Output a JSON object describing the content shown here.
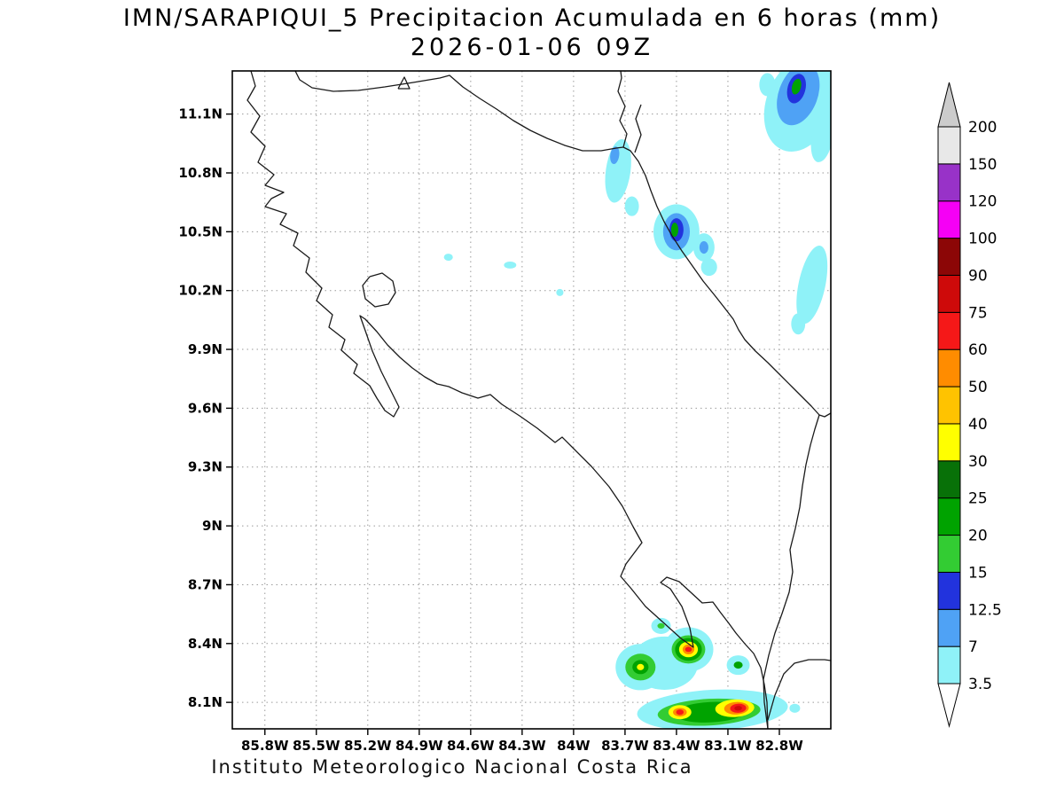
{
  "title": {
    "line1": "IMN/SARAPIQUI_5 Precipitacion Acumulada en 6 horas (mm)",
    "line2": "2026-01-06 09Z"
  },
  "footer": "Instituto Meteorologico Nacional Costa Rica",
  "axes": {
    "y_tick_labels": [
      "11.1N",
      "10.8N",
      "10.5N",
      "10.2N",
      "9.9N",
      "9.6N",
      "9.3N",
      "9N",
      "8.7N",
      "8.4N",
      "8.1N"
    ],
    "x_tick_labels": [
      "85.8W",
      "85.5W",
      "85.2W",
      "84.9W",
      "84.6W",
      "84.3W",
      "84W",
      "83.7W",
      "83.4W",
      "83.1W",
      "82.8W"
    ]
  },
  "colorbar": {
    "labels_bottom_to_top": [
      "3.5",
      "7",
      "12.5",
      "15",
      "20",
      "25",
      "30",
      "40",
      "50",
      "60",
      "75",
      "90",
      "100",
      "120",
      "150",
      "200"
    ],
    "segment_colors_bottom_to_top": [
      "#8FF2F8",
      "#4FA2F5",
      "#2233DD",
      "#33CC33",
      "#00A300",
      "#087108",
      "#FFFF00",
      "#FFC300",
      "#FF8C00",
      "#F51818",
      "#CE0A0A",
      "#8C0606",
      "#F500F5",
      "#9832C8",
      "#E8E8E8"
    ],
    "under_arrow_color": "#FFFFFF",
    "over_arrow_color": "#CCCCCC"
  },
  "chart_data": {
    "type": "heatmap",
    "model": "IMN/SARAPIQUI_5",
    "variable": "Precipitacion Acumulada en 6 horas",
    "units": "mm",
    "valid_time": "2026-01-06 09Z",
    "region": "Costa Rica",
    "lon_west_range": [
      85.99,
      82.5
    ],
    "lat_north_range": [
      7.96,
      11.32
    ],
    "shading_levels_mm": [
      3.5,
      7,
      12.5,
      15,
      20,
      25,
      30,
      40,
      50,
      60,
      75,
      90,
      100,
      120,
      150,
      200
    ],
    "precip_cells_format": "[lon_w_deg, lat_n_deg, rx_deg_lon, ry_deg_lat, rotation_deg, level_mm]",
    "precip_cells": [
      [
        82.68,
        11.15,
        0.197,
        0.249,
        20,
        3.5
      ],
      [
        82.55,
        10.98,
        0.062,
        0.127,
        10,
        3.5
      ],
      [
        82.87,
        11.25,
        0.047,
        0.059,
        0,
        3.5
      ],
      [
        83.74,
        10.81,
        0.072,
        0.163,
        8,
        3.5
      ],
      [
        83.66,
        10.63,
        0.041,
        0.05,
        0,
        3.5
      ],
      [
        83.4,
        10.5,
        0.134,
        0.14,
        0,
        3.5
      ],
      [
        83.24,
        10.42,
        0.062,
        0.072,
        0,
        3.5
      ],
      [
        83.21,
        10.32,
        0.047,
        0.045,
        0,
        3.5
      ],
      [
        82.61,
        10.23,
        0.078,
        0.203,
        12,
        3.5
      ],
      [
        82.69,
        10.03,
        0.041,
        0.054,
        0,
        3.5
      ],
      [
        84.73,
        10.37,
        0.026,
        0.018,
        0,
        3.5
      ],
      [
        84.37,
        10.33,
        0.036,
        0.018,
        0,
        3.5
      ],
      [
        84.08,
        10.19,
        0.021,
        0.018,
        0,
        3.5
      ],
      [
        83.47,
        8.3,
        0.196,
        0.136,
        0,
        3.5
      ],
      [
        83.49,
        8.49,
        0.057,
        0.041,
        0,
        3.5
      ],
      [
        83.61,
        8.28,
        0.145,
        0.118,
        0,
        3.5
      ],
      [
        83.33,
        8.37,
        0.145,
        0.113,
        0,
        3.5
      ],
      [
        83.04,
        8.29,
        0.067,
        0.05,
        0,
        3.5
      ],
      [
        83.19,
        8.06,
        0.44,
        0.104,
        -3,
        3.5
      ],
      [
        82.71,
        8.07,
        0.031,
        0.023,
        0,
        3.5
      ],
      [
        82.69,
        11.2,
        0.114,
        0.163,
        20,
        7
      ],
      [
        83.76,
        10.89,
        0.026,
        0.045,
        8,
        7
      ],
      [
        83.4,
        10.5,
        0.078,
        0.095,
        0,
        7
      ],
      [
        83.24,
        10.42,
        0.026,
        0.032,
        0,
        7
      ],
      [
        82.7,
        11.23,
        0.052,
        0.077,
        15,
        12.5
      ],
      [
        83.4,
        10.51,
        0.041,
        0.059,
        0,
        12.5
      ],
      [
        83.49,
        8.49,
        0.021,
        0.014,
        0,
        15
      ],
      [
        83.61,
        8.28,
        0.088,
        0.068,
        0,
        15
      ],
      [
        83.33,
        8.37,
        0.098,
        0.072,
        0,
        15
      ],
      [
        83.21,
        8.05,
        0.3,
        0.068,
        -3,
        15
      ],
      [
        82.7,
        11.24,
        0.026,
        0.041,
        15,
        20
      ],
      [
        83.41,
        10.51,
        0.021,
        0.036,
        0,
        20
      ],
      [
        83.61,
        8.28,
        0.047,
        0.036,
        0,
        20
      ],
      [
        83.33,
        8.37,
        0.078,
        0.058,
        0,
        20
      ],
      [
        83.04,
        8.29,
        0.026,
        0.018,
        0,
        20
      ],
      [
        83.2,
        8.05,
        0.21,
        0.052,
        -3,
        20
      ],
      [
        83.61,
        8.28,
        0.021,
        0.016,
        0,
        30
      ],
      [
        83.33,
        8.37,
        0.055,
        0.04,
        0,
        30
      ],
      [
        83.38,
        8.05,
        0.067,
        0.036,
        0,
        30
      ],
      [
        83.06,
        8.07,
        0.114,
        0.045,
        -3,
        30
      ],
      [
        83.33,
        8.37,
        0.034,
        0.025,
        0,
        50
      ],
      [
        83.38,
        8.05,
        0.04,
        0.022,
        0,
        50
      ],
      [
        83.05,
        8.07,
        0.072,
        0.032,
        -3,
        50
      ],
      [
        83.33,
        8.37,
        0.02,
        0.013,
        0,
        60
      ],
      [
        83.38,
        8.05,
        0.022,
        0.014,
        0,
        60
      ],
      [
        83.04,
        8.07,
        0.047,
        0.023,
        -3,
        60
      ],
      [
        83.04,
        8.07,
        0.022,
        0.012,
        -3,
        75
      ]
    ]
  }
}
